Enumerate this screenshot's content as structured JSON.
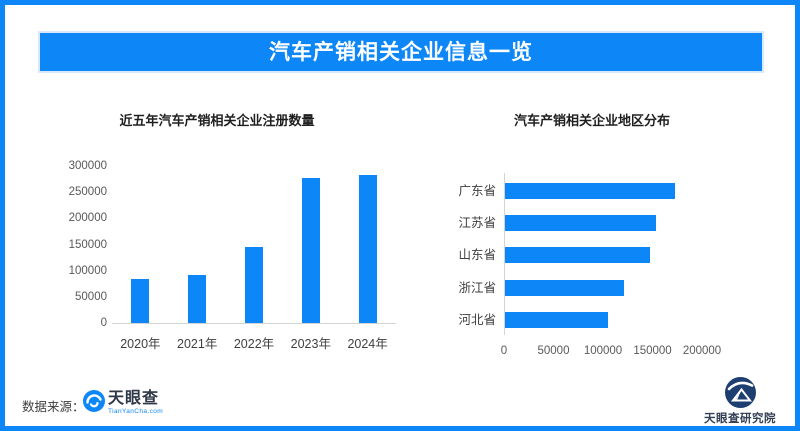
{
  "header": {
    "title": "汽车产销相关企业信息一览",
    "accent_color": "#0d87f8",
    "banner_halo_color": "#d7e9fd"
  },
  "chart_data": [
    {
      "type": "bar",
      "title": "近五年汽车产销相关企业注册数量",
      "categories": [
        "2020年",
        "2021年",
        "2022年",
        "2023年",
        "2024年"
      ],
      "values": [
        85000,
        92000,
        145000,
        278000,
        283000
      ],
      "ylim": [
        0,
        300000
      ],
      "yticks": [
        0,
        50000,
        100000,
        150000,
        200000,
        250000,
        300000
      ],
      "xlabel": "",
      "ylabel": "",
      "grid": false,
      "legend": "none",
      "bar_color": "#0d87f8"
    },
    {
      "type": "bar-horizontal",
      "title": "汽车产销相关企业地区分布",
      "categories": [
        "广东省",
        "江苏省",
        "山东省",
        "浙江省",
        "河北省"
      ],
      "values": [
        172000,
        153000,
        146000,
        120000,
        104000
      ],
      "xlim": [
        0,
        200000
      ],
      "xticks": [
        0,
        50000,
        100000,
        150000,
        200000
      ],
      "xlabel": "",
      "ylabel": "",
      "grid": false,
      "legend": "none",
      "bar_color": "#0d87f8"
    }
  ],
  "footer": {
    "source_label": "数据来源：",
    "brand": {
      "name": "天眼查",
      "domain": "TianYanCha.com"
    },
    "institute": "天眼查研究院"
  }
}
